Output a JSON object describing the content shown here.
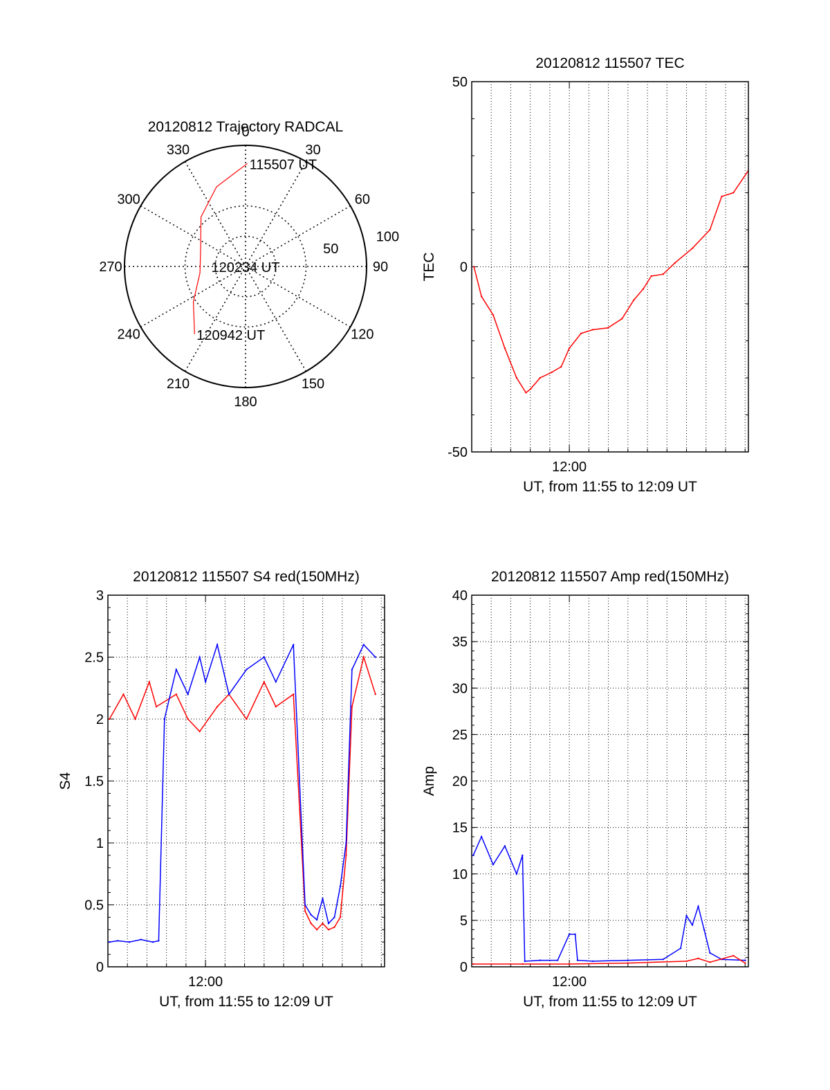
{
  "chart_data": [
    {
      "type": "polar",
      "title": "20120812 Trajectory RADCAL",
      "azimuth_labels": [
        "0",
        "30",
        "60",
        "90",
        "120",
        "150",
        "180",
        "210",
        "240",
        "270",
        "300",
        "330"
      ],
      "radial_labels": [
        "50",
        "100"
      ],
      "rlim": [
        0,
        100
      ],
      "grid": true,
      "series": [
        {
          "color": "#ff0000",
          "points": [
            {
              "az": 1,
              "r": 85
            },
            {
              "az": 340,
              "r": 70
            },
            {
              "az": 318,
              "r": 55
            },
            {
              "az": 292,
              "r": 40
            },
            {
              "az": 262,
              "r": 38
            },
            {
              "az": 236,
              "r": 52
            },
            {
              "az": 217,
              "r": 70
            }
          ]
        }
      ],
      "annotations": [
        {
          "text": "115507 UT",
          "az": 1,
          "r": 85
        },
        {
          "text": "120234 UT",
          "az": 270,
          "r": 30
        },
        {
          "text": "120942 UT",
          "az": 217,
          "r": 70
        }
      ]
    },
    {
      "type": "line",
      "title": "20120812 115507 TEC",
      "xlabel": "UT, from 11:55 to 12:09 UT",
      "ylabel": "TEC",
      "xlim": [
        11.9167,
        12.1528
      ],
      "ylim": [
        -50,
        50
      ],
      "yticks": [
        "50",
        "0",
        "-50"
      ],
      "xticks": [
        "12:00"
      ],
      "grid": true,
      "series": [
        {
          "color": "#ff0000",
          "x": [
            11.9186,
            11.925,
            11.935,
            11.945,
            11.955,
            11.963,
            11.967,
            11.975,
            11.985,
            11.993,
            12.0,
            12.01,
            12.02,
            12.033,
            12.045,
            12.055,
            12.063,
            12.07,
            12.08,
            12.09,
            12.105,
            12.12,
            12.13,
            12.14,
            12.1528
          ],
          "y": [
            0,
            -8,
            -13,
            -22,
            -30,
            -34,
            -33,
            -30,
            -28.5,
            -27,
            -22,
            -18,
            -17,
            -16.5,
            -14,
            -9,
            -6,
            -2.5,
            -2,
            1,
            5,
            10,
            19,
            20,
            26
          ]
        }
      ]
    },
    {
      "type": "line",
      "title": "20120812 115507 S4 red(150MHz)",
      "xlabel": "UT, from 11:55 to 12:09 UT",
      "ylabel": "S4",
      "xlim": [
        11.9167,
        12.1528
      ],
      "ylim": [
        0,
        3
      ],
      "yticks": [
        "0",
        "0.5",
        "1",
        "1.5",
        "2",
        "2.5",
        "3"
      ],
      "xticks": [
        "12:00"
      ],
      "grid": true,
      "series": [
        {
          "color": "#ff0000",
          "x": [
            11.918,
            11.93,
            11.94,
            11.952,
            11.958,
            11.975,
            11.985,
            11.995,
            12.01,
            12.02,
            12.035,
            12.05,
            12.06,
            12.075,
            12.085,
            12.09,
            12.095,
            12.1,
            12.105,
            12.11,
            12.115,
            12.12,
            12.125,
            12.135,
            12.145
          ],
          "y": [
            2.0,
            2.2,
            2.0,
            2.3,
            2.1,
            2.2,
            2.0,
            1.9,
            2.1,
            2.2,
            2.0,
            2.3,
            2.1,
            2.2,
            0.45,
            0.35,
            0.3,
            0.35,
            0.3,
            0.32,
            0.4,
            0.9,
            2.1,
            2.5,
            2.2
          ]
        },
        {
          "color": "#0000ff",
          "x": [
            11.918,
            11.925,
            11.935,
            11.945,
            11.955,
            11.96,
            11.965,
            11.975,
            11.985,
            11.995,
            12.0,
            12.01,
            12.02,
            12.035,
            12.05,
            12.06,
            12.075,
            12.085,
            12.09,
            12.095,
            12.1,
            12.105,
            12.11,
            12.115,
            12.12,
            12.125,
            12.135,
            12.145
          ],
          "y": [
            0.2,
            0.21,
            0.2,
            0.22,
            0.2,
            0.21,
            2.0,
            2.4,
            2.2,
            2.5,
            2.3,
            2.6,
            2.2,
            2.4,
            2.5,
            2.3,
            2.6,
            0.5,
            0.42,
            0.38,
            0.55,
            0.35,
            0.4,
            0.65,
            1.0,
            2.4,
            2.6,
            2.5
          ]
        }
      ]
    },
    {
      "type": "line",
      "title": "20120812 115507 Amp red(150MHz)",
      "xlabel": "UT, from 11:55 to 12:09 UT",
      "ylabel": "Amp",
      "xlim": [
        11.9167,
        12.1528
      ],
      "ylim": [
        0,
        40
      ],
      "yticks": [
        "0",
        "5",
        "10",
        "15",
        "20",
        "25",
        "30",
        "35",
        "40"
      ],
      "xticks": [
        "12:00"
      ],
      "grid": true,
      "series": [
        {
          "color": "#0000ff",
          "x": [
            11.918,
            11.925,
            11.935,
            11.945,
            11.955,
            11.96,
            11.962,
            11.975,
            11.99,
            12.0,
            12.005,
            12.007,
            12.02,
            12.05,
            12.08,
            12.095,
            12.1,
            12.105,
            12.11,
            12.115,
            12.12,
            12.13,
            12.15
          ],
          "y": [
            12,
            14,
            11,
            13,
            10,
            12,
            0.6,
            0.7,
            0.7,
            3.5,
            3.5,
            0.7,
            0.6,
            0.7,
            0.8,
            2.0,
            5.5,
            4.5,
            6.5,
            4.0,
            1.5,
            0.8,
            0.7
          ]
        },
        {
          "color": "#ff0000",
          "x": [
            11.918,
            11.96,
            12.0,
            12.05,
            12.1,
            12.11,
            12.12,
            12.14,
            12.15
          ],
          "y": [
            0.3,
            0.3,
            0.3,
            0.4,
            0.6,
            0.9,
            0.5,
            1.2,
            0.4
          ]
        }
      ]
    }
  ]
}
